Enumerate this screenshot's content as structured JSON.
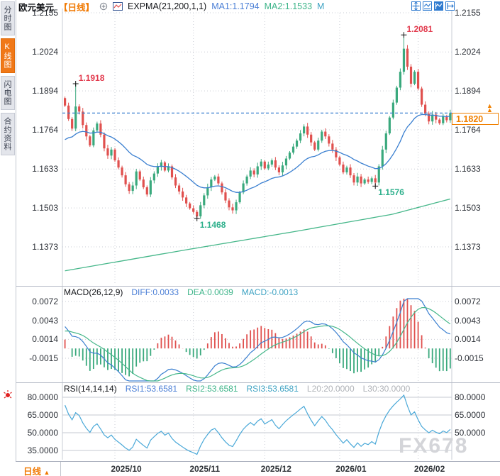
{
  "header": {
    "symbol": "欧元美元",
    "period_tag": "【日线】",
    "indicator_label": "EXPMA(21,200,1,1)",
    "ma1_label": "MA1:1.1794",
    "ma2_label": "MA2:1.1533",
    "m_label": "M"
  },
  "icons": {
    "add_indicator": "circle-plus",
    "indicator_chart": "mini-line-chart",
    "toolbar": [
      "crosshair-move",
      "fit-horizontal",
      "fit-vertical",
      "pan-right"
    ],
    "price_marker": "double-up-triangle",
    "sidebar_alert": "red-alarm"
  },
  "sidebar": {
    "items": [
      {
        "label": "分时图",
        "active": false
      },
      {
        "label": "K线图",
        "active": true
      },
      {
        "label": "闪电图",
        "active": false
      },
      {
        "label": "合约资料",
        "active": false
      }
    ]
  },
  "main_axis_labels": [
    "1.2155",
    "1.2024",
    "1.1894",
    "1.1764",
    "1.1633",
    "1.1503",
    "1.1373"
  ],
  "current_price": "1.1820",
  "macd_panel": {
    "title": "MACD(26,12,9)",
    "diff_label": "DIFF:0.0033",
    "dea_label": "DEA:0.0039",
    "macd_label": "MACD:-0.0013",
    "axis_labels": [
      "0.0072",
      "0.0043",
      "0.0014",
      "-0.0015"
    ]
  },
  "rsi_panel": {
    "title": "RSI(14,14,14)",
    "rsi1_label": "RSI1:53.6581",
    "rsi2_label": "RSI2:53.6581",
    "rsi3_label": "RSI3:53.6581",
    "l20_label": "L20:20.0000",
    "l30_label": "L30:30.0000",
    "axis_labels": [
      "80.0000",
      "65.0000",
      "50.0000",
      "35.0000"
    ],
    "axis_labels_right": [
      "80.0000",
      "65.0000",
      "50.0000"
    ]
  },
  "bottom_bar": {
    "period": "日线",
    "arrow": "▲"
  },
  "watermark": "FX678",
  "colors": {
    "up": "#3aa97d",
    "down": "#e0504e",
    "ma1": "#3a7fd0",
    "ma2": "#46b78a",
    "diff": "#3a7fd0",
    "dea": "#46b78a",
    "hist_pos": "#e0504e",
    "hist_neg": "#3aa97d",
    "rsi_line": "#49a8d8",
    "accent": "#f08000",
    "grid": "#c9ccd4",
    "grid_solid": "#c4c8d0",
    "price_line": "#3a7fd0"
  },
  "chart_data": {
    "type": "candlestick",
    "title": "EUR/USD daily with EXPMA(21,200), MACD(26,12,9), RSI(14,14,14)",
    "main": {
      "ylim": [
        1.1253,
        1.2174
      ],
      "gridline_values": [
        1.2155,
        1.2024,
        1.1894,
        1.1764,
        1.1633,
        1.1503,
        1.1373
      ],
      "first_open": 1.187,
      "closes": [
        1.1845,
        1.18,
        1.1768,
        1.1842,
        1.1825,
        1.178,
        1.1742,
        1.1712,
        1.1762,
        1.1785,
        1.1748,
        1.1702,
        1.1678,
        1.1698,
        1.1662,
        1.1638,
        1.1612,
        1.1582,
        1.156,
        1.1578,
        1.1625,
        1.1598,
        1.1572,
        1.1548,
        1.1595,
        1.1618,
        1.164,
        1.1655,
        1.1628,
        1.1642,
        1.1605,
        1.1578,
        1.1558,
        1.1538,
        1.1518,
        1.1502,
        1.149,
        1.1475,
        1.1512,
        1.1545,
        1.1572,
        1.1598,
        1.1608,
        1.1585,
        1.1555,
        1.1528,
        1.1505,
        1.1495,
        1.1522,
        1.1555,
        1.1585,
        1.1608,
        1.1628,
        1.1615,
        1.1642,
        1.1658,
        1.1635,
        1.1648,
        1.1662,
        1.1638,
        1.1622,
        1.1645,
        1.1668,
        1.1688,
        1.1708,
        1.1728,
        1.1752,
        1.1775,
        1.1748,
        1.1722,
        1.1698,
        1.1728,
        1.1758,
        1.1742,
        1.1718,
        1.1698,
        1.1672,
        1.1648,
        1.1622,
        1.1638,
        1.1612,
        1.1588,
        1.1608,
        1.1585,
        1.1598,
        1.159,
        1.1602,
        1.1588,
        1.1642,
        1.1698,
        1.1752,
        1.1805,
        1.1855,
        1.1905,
        1.1958,
        1.2035,
        1.1975,
        1.1918,
        1.1958,
        1.1902,
        1.1848,
        1.1818,
        1.1792,
        1.1815,
        1.1798,
        1.1786,
        1.1808,
        1.1796,
        1.182
      ],
      "wick_overrides": {
        "3": {
          "high": 1.1918
        },
        "95": {
          "high": 1.2081
        },
        "37": {
          "low": 1.1468
        },
        "87": {
          "low": 1.1576
        }
      },
      "ma1_period": 21,
      "ma2_points": [
        [
          0,
          1.1293
        ],
        [
          0.3,
          1.136
        ],
        [
          0.6,
          1.1425
        ],
        [
          0.85,
          1.1482
        ],
        [
          1,
          1.1533
        ]
      ],
      "last_price": 1.182,
      "key_points": [
        {
          "index": 3,
          "value": 1.1918,
          "type": "high",
          "label": "1.1918"
        },
        {
          "index": 95,
          "value": 1.2081,
          "type": "high",
          "label": "1.2081"
        },
        {
          "index": 87,
          "value": 1.1576,
          "type": "low",
          "label": "1.1576"
        },
        {
          "index": 37,
          "value": 1.1468,
          "type": "low",
          "label": "1.1468"
        }
      ]
    },
    "macd": {
      "params": [
        26,
        12,
        9
      ],
      "gridline_values": [
        0.0072,
        0.0043,
        0.0014,
        -0.0015
      ],
      "current": {
        "diff": 0.0033,
        "dea": 0.0039,
        "macd": -0.0013
      }
    },
    "rsi": {
      "params": [
        14,
        14,
        14
      ],
      "gridline_values": [
        80,
        65,
        50,
        35
      ],
      "current": {
        "rsi1": 53.6581,
        "rsi2": 53.6581,
        "rsi3": 53.6581,
        "l20": 20.0,
        "l30": 30.0
      }
    },
    "x_axis": {
      "month_tick_indices": [
        14,
        36,
        56,
        77,
        99
      ],
      "month_labels": [
        "2025/10",
        "2025/11",
        "2025/12",
        "2026/01",
        "2026/02"
      ]
    }
  }
}
